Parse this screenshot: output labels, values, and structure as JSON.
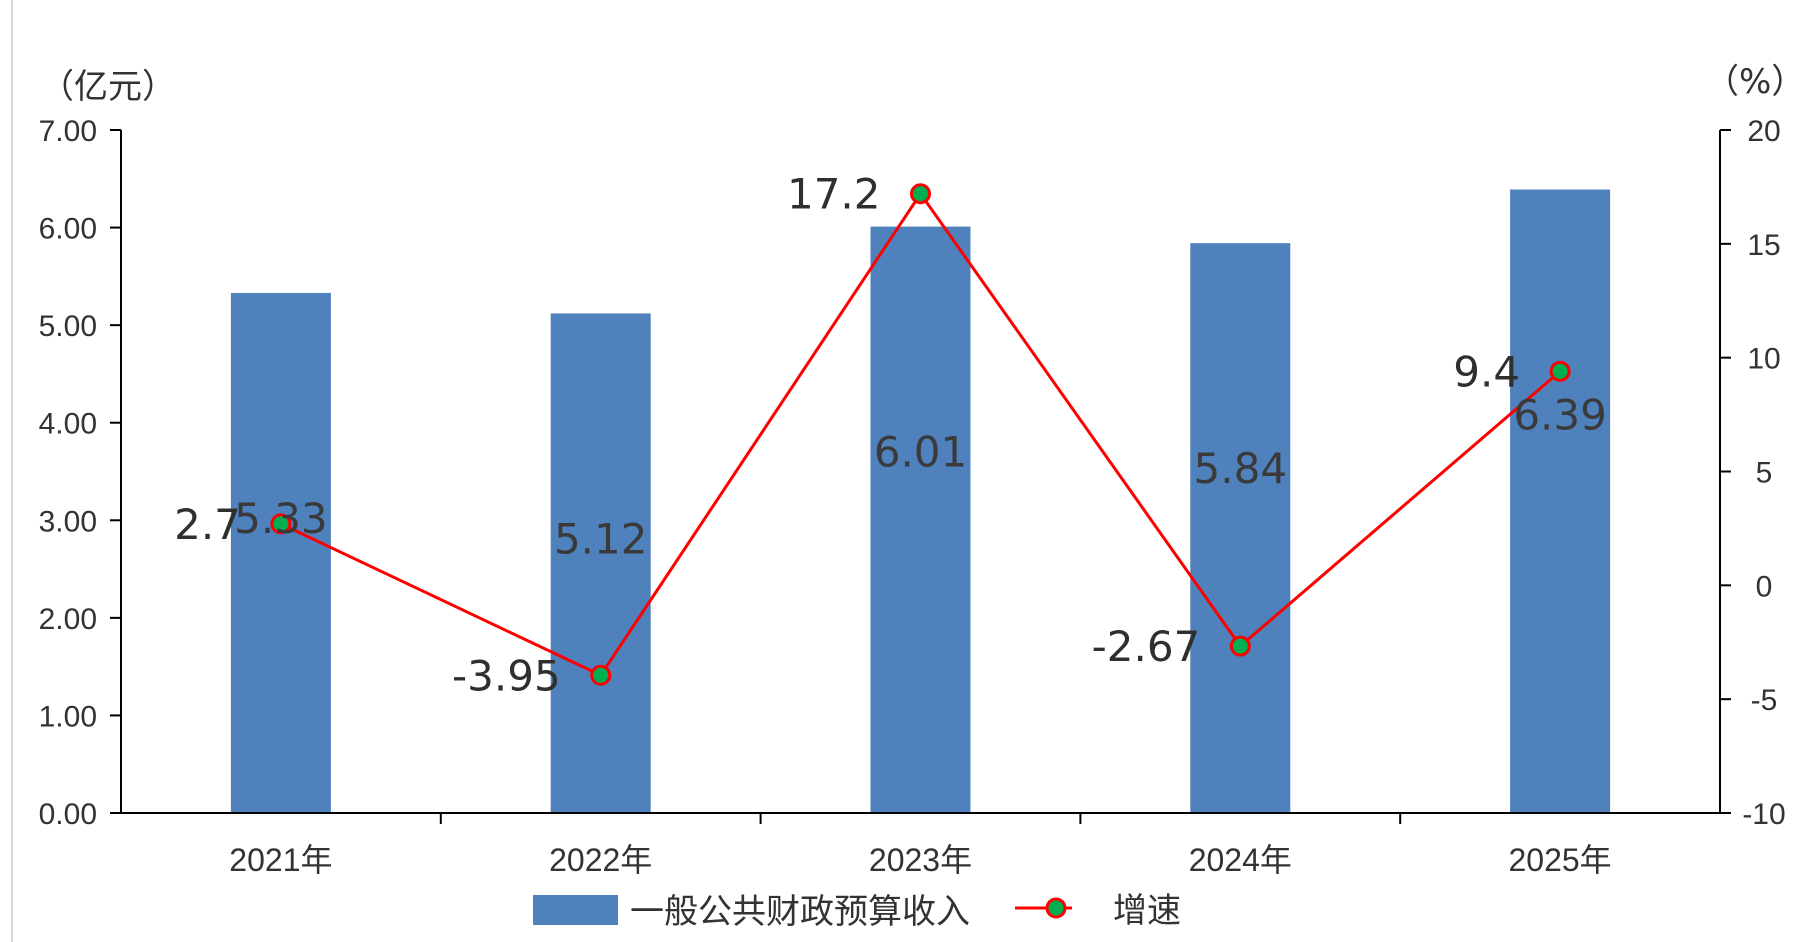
{
  "chart_data": {
    "type": "bar",
    "categories": [
      "2021年",
      "2022年",
      "2023年",
      "2024年",
      "2025年"
    ],
    "series": [
      {
        "name": "一般公共财政预算收入",
        "chart": "bar",
        "axis": "left",
        "values": [
          5.33,
          5.12,
          6.01,
          5.84,
          6.39
        ],
        "labels": [
          "5.33",
          "5.12",
          "6.01",
          "5.84",
          "6.39"
        ],
        "color": "#4f81bd"
      },
      {
        "name": "增速",
        "chart": "line",
        "axis": "right",
        "values": [
          2.7,
          -3.95,
          17.2,
          -2.67,
          9.4
        ],
        "labels": [
          "2.7",
          "-3.95",
          "17.2",
          "-2.67",
          "9.4"
        ],
        "color": "#ff0000",
        "marker_color": "#00b050"
      }
    ],
    "y_left": {
      "unit": "（亿元）",
      "ylim": [
        0,
        7
      ],
      "ticks": [
        0,
        1,
        2,
        3,
        4,
        5,
        6,
        7
      ],
      "tick_labels": [
        "0.00",
        "1.00",
        "2.00",
        "3.00",
        "4.00",
        "5.00",
        "6.00",
        "7.00"
      ]
    },
    "y_right": {
      "unit": "（%）",
      "ylim": [
        -10,
        20
      ],
      "ticks": [
        -10,
        -5,
        0,
        5,
        10,
        15,
        20
      ],
      "tick_labels": [
        "-10",
        "-5",
        "0",
        "5",
        "10",
        "15",
        "20"
      ]
    },
    "grid": false,
    "legend": {
      "position": "bottom"
    }
  }
}
